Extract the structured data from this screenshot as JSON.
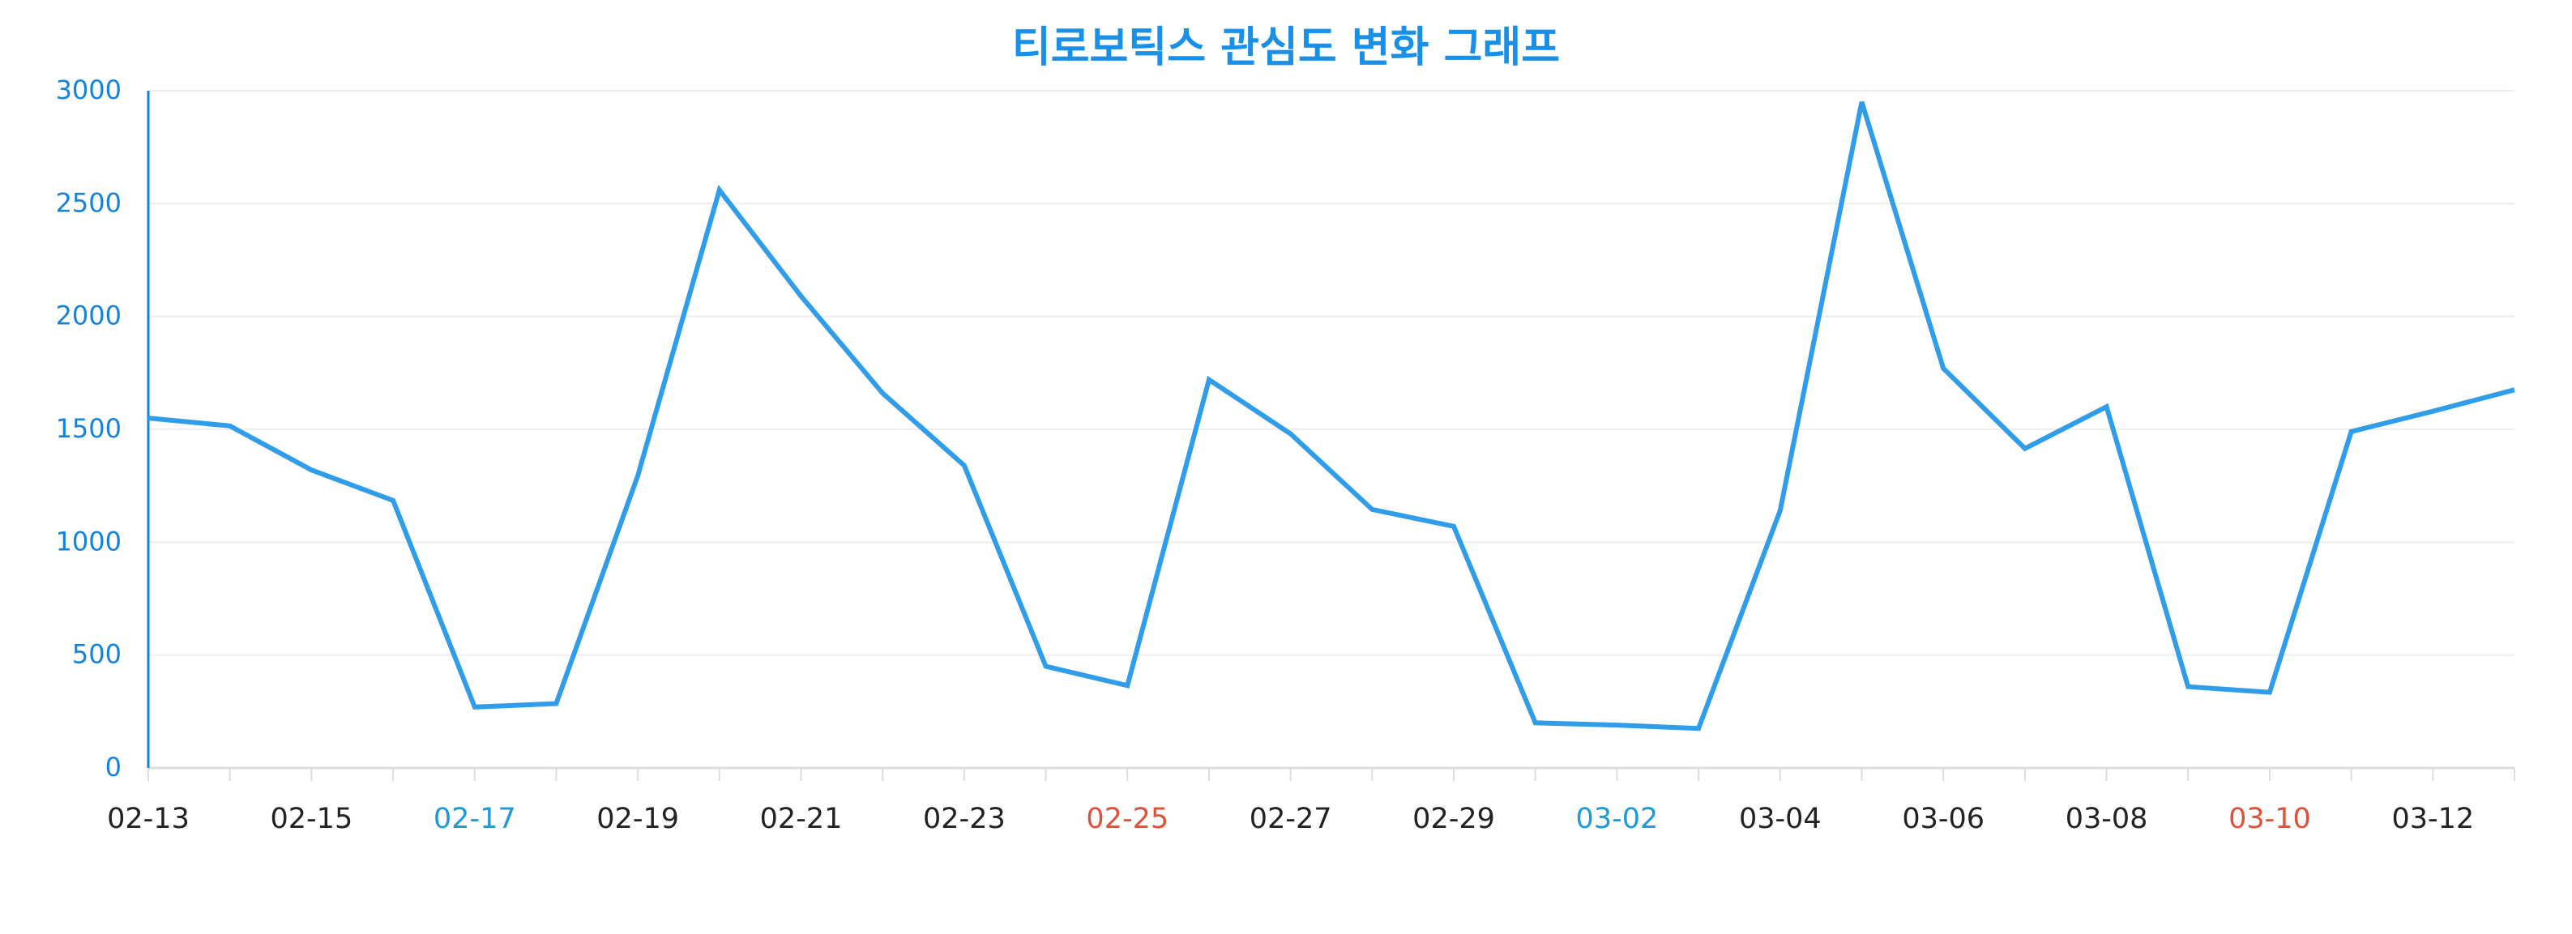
{
  "colors": {
    "title": "#1890e8",
    "line": "#2f9de9",
    "y_axis": "#1683d8",
    "y_tick_label": "#1683d8",
    "grid": "#eeeeee",
    "x_axis": "#dddddd",
    "x_tick_default": "#222222",
    "x_tick_saturday": "#1e9ad6",
    "x_tick_sunday": "#e0513a"
  },
  "chart_data": {
    "type": "line",
    "title": "티로보틱스 관심도 변화 그래프",
    "xlabel": "",
    "ylabel": "",
    "ylim": [
      0,
      3000
    ],
    "yticks": [
      0,
      500,
      1000,
      1500,
      2000,
      2500,
      3000
    ],
    "grid": true,
    "x": [
      "02-13",
      "02-14",
      "02-15",
      "02-16",
      "02-17",
      "02-18",
      "02-19",
      "02-20",
      "02-21",
      "02-22",
      "02-23",
      "02-24",
      "02-25",
      "02-26",
      "02-27",
      "02-28",
      "02-29",
      "03-01",
      "03-02",
      "03-03",
      "03-04",
      "03-05",
      "03-06",
      "03-07",
      "03-08",
      "03-09",
      "03-10",
      "03-11",
      "03-12",
      "03-13"
    ],
    "x_tick_labels": [
      "02-13",
      "02-15",
      "02-17",
      "02-19",
      "02-21",
      "02-23",
      "02-25",
      "02-27",
      "02-29",
      "03-02",
      "03-04",
      "03-06",
      "03-08",
      "03-10",
      "03-12"
    ],
    "x_tick_label_colors": {
      "02-17": "saturday",
      "02-25": "sunday",
      "03-02": "saturday",
      "03-10": "sunday"
    },
    "series": [
      {
        "values": [
          1550,
          1515,
          1320,
          1185,
          270,
          285,
          1295,
          2560,
          2090,
          1660,
          1340,
          450,
          365,
          1720,
          1480,
          1145,
          1070,
          200,
          190,
          175,
          1140,
          2950,
          1770,
          1415,
          1600,
          360,
          335,
          1490,
          1580,
          1675
        ]
      }
    ]
  }
}
